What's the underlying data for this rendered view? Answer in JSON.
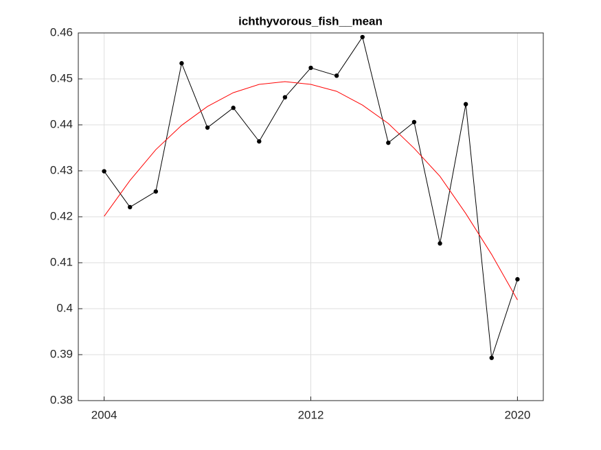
{
  "chart_data": {
    "type": "line",
    "title": "ichthyvorous_fish__mean",
    "x": [
      2004,
      2005,
      2006,
      2007,
      2008,
      2009,
      2010,
      2011,
      2012,
      2013,
      2014,
      2015,
      2016,
      2017,
      2018,
      2019,
      2020
    ],
    "series": [
      {
        "color": "#000000",
        "marker": true,
        "values": [
          0.4299,
          0.4221,
          0.4255,
          0.4534,
          0.4394,
          0.4437,
          0.4364,
          0.446,
          0.4524,
          0.4507,
          0.4591,
          0.4361,
          0.4406,
          0.4142,
          0.4445,
          0.3893,
          0.4064
        ]
      },
      {
        "color": "#ff0000",
        "marker": false,
        "values": [
          0.4201,
          0.4279,
          0.4346,
          0.4399,
          0.444,
          0.447,
          0.4488,
          0.4494,
          0.4488,
          0.4473,
          0.4443,
          0.4403,
          0.4349,
          0.4288,
          0.4207,
          0.4118,
          0.4019
        ]
      }
    ],
    "xlim": [
      2003,
      2021
    ],
    "xticks": [
      2004,
      2012,
      2020
    ],
    "ylim": [
      0.38,
      0.46
    ],
    "yticks": [
      0.38,
      0.39,
      0.4,
      0.41,
      0.42,
      0.43,
      0.44,
      0.45,
      0.46
    ],
    "grid": true
  }
}
